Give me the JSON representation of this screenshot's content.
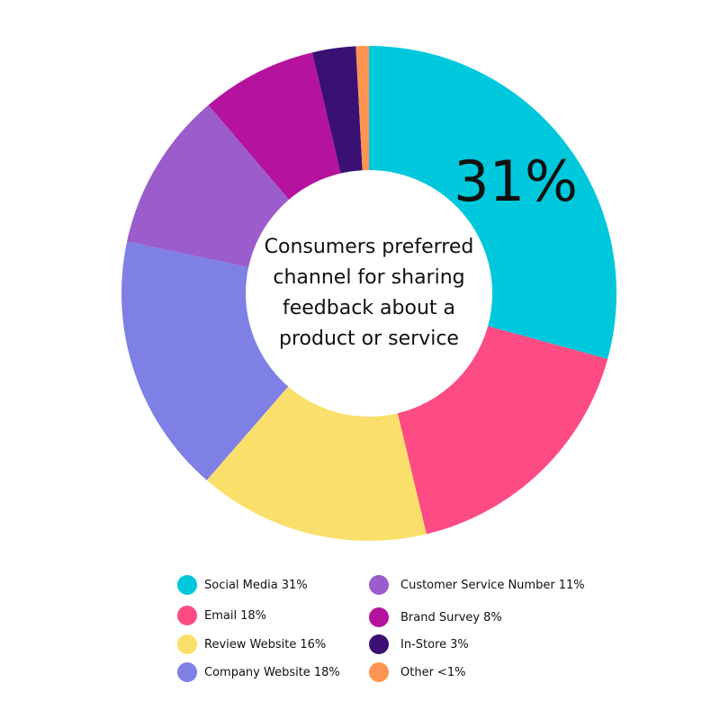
{
  "chart_data": {
    "type": "donut",
    "title": "Consumers preferred channel for sharing feedback about a product or service",
    "categories": [
      "Social Media",
      "Email",
      "Review Website",
      "Company Website",
      "Customer Service Number",
      "Brand Survey",
      "In-Store",
      "Other"
    ],
    "values": [
      31,
      18,
      16,
      18,
      11,
      8,
      3,
      0.9
    ],
    "value_labels": [
      "31%",
      "18%",
      "16%",
      "18%",
      "11%",
      "8%",
      "3%",
      "<1%"
    ],
    "colors": [
      "#00c8dc",
      "#fd4b84",
      "#fae06a",
      "#7e80e6",
      "#9b5ccc",
      "#b5129e",
      "#3a1074",
      "#ff9452"
    ]
  }
}
